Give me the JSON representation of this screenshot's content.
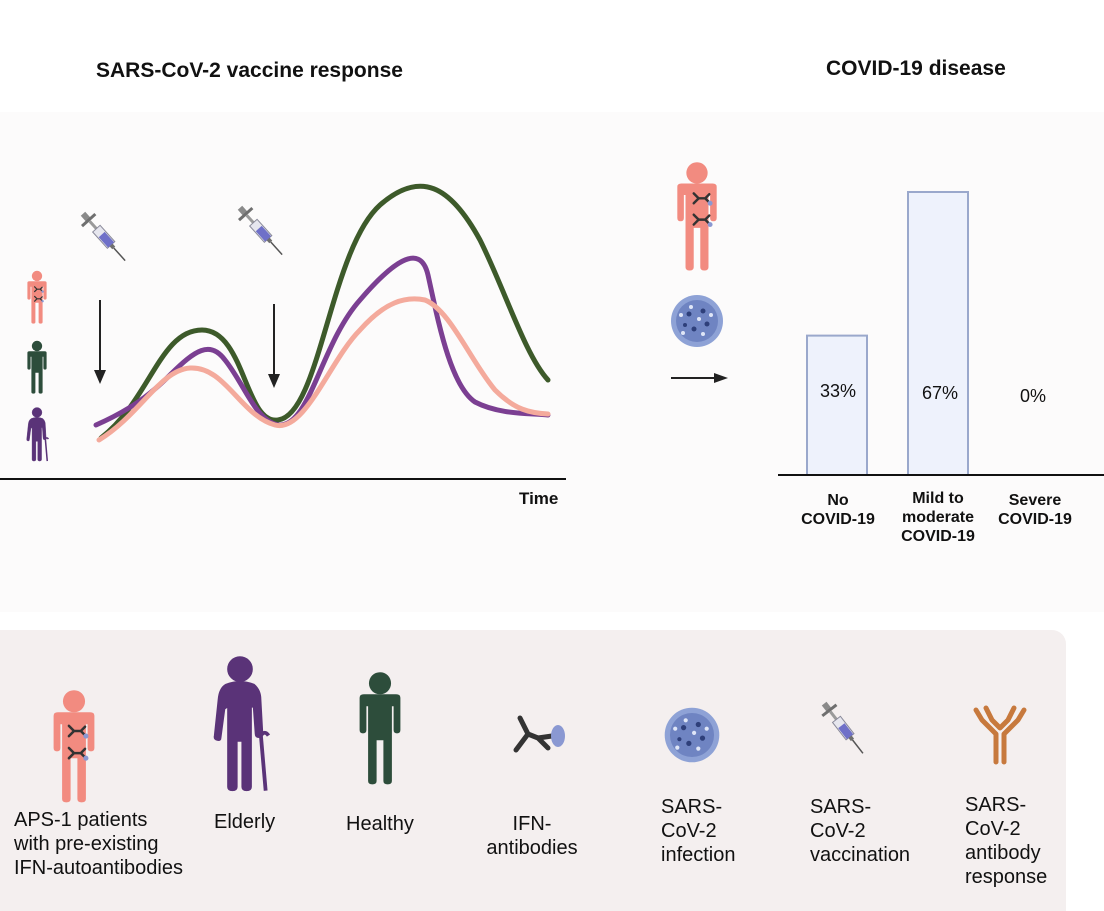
{
  "left_panel": {
    "title": "SARS-CoV-2 vaccine response",
    "xlabel": "Time"
  },
  "right_panel": {
    "title": "COVID-19 disease"
  },
  "chart_data": {
    "type": "bar",
    "title": "COVID-19 disease",
    "categories": [
      "No COVID-19",
      "Mild to moderate COVID-19",
      "Severe COVID-19"
    ],
    "values": [
      33,
      67,
      0
    ],
    "value_labels": [
      "33%",
      "67%",
      "0%"
    ],
    "ylim": [
      0,
      100
    ],
    "grid": false
  },
  "categories_display": {
    "no": [
      "No",
      "COVID-19"
    ],
    "mild": [
      "Mild to",
      "moderate",
      "COVID-19"
    ],
    "severe": [
      "Severe",
      "COVID-19"
    ]
  },
  "colors": {
    "aps1": "#f28b80",
    "elderly": "#5a3378",
    "healthy": "#2d4d3b",
    "green_line": "#3d5a2a",
    "purple_line": "#7b3f92",
    "pink_line": "#f4aa9c",
    "bar_fill": "#eef2fc",
    "bar_stroke": "#9aa8cc"
  },
  "legend": {
    "aps1": [
      "APS-1 patients",
      "with pre-existing",
      "IFN-autoantibodies"
    ],
    "elderly": [
      "Elderly"
    ],
    "healthy": [
      "Healthy"
    ],
    "ifn": [
      "IFN-",
      "antibodies"
    ],
    "infection": [
      "SARS-",
      "CoV-2",
      "infection"
    ],
    "vaccination": [
      "SARS-",
      "CoV-2",
      "vaccination"
    ],
    "antibody": [
      "SARS-",
      "CoV-2",
      "antibody",
      "response"
    ]
  },
  "icons": [
    "syringe-icon",
    "down-arrow-icon",
    "person-icon",
    "elderly-person-icon",
    "virus-icon",
    "antibody-icon",
    "right-arrow-icon"
  ]
}
